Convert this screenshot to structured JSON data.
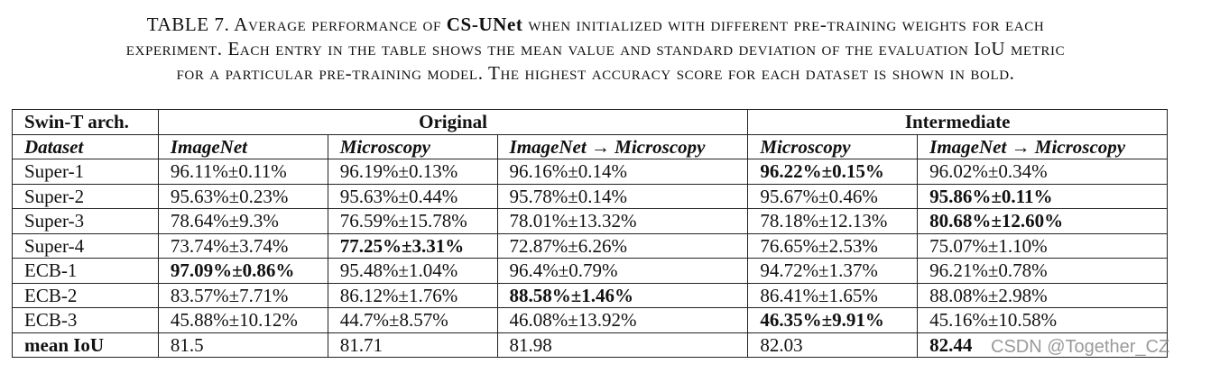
{
  "caption": {
    "line1": [
      "TABLE 7. Average performance of ",
      "CS-UNet",
      " when initialized with different pre-training weights for each"
    ],
    "line2": "experiment. Each entry in the table shows the mean value and standard deviation of the evaluation IoU metric",
    "line3": "for a particular pre-training model. The highest accuracy score for each dataset is shown in bold."
  },
  "table": {
    "group_header": [
      "Swin-T arch.",
      "Original",
      "Intermediate"
    ],
    "column_header": [
      "Dataset",
      "ImageNet",
      "Microscopy",
      "ImageNet → Microscopy",
      "Microscopy",
      "ImageNet → Microscopy"
    ],
    "rows": [
      [
        "Super-1",
        "96.11%±0.11%",
        "96.19%±0.13%",
        "96.16%±0.14%",
        {
          "text": "96.22%±0.15%",
          "bold": true
        },
        "96.02%±0.34%"
      ],
      [
        "Super-2",
        "95.63%±0.23%",
        "95.63%±0.44%",
        "95.78%±0.14%",
        "95.67%±0.46%",
        {
          "text": "95.86%±0.11%",
          "bold": true
        }
      ],
      [
        "Super-3",
        "78.64%±9.3%",
        "76.59%±15.78%",
        "78.01%±13.32%",
        "78.18%±12.13%",
        {
          "text": "80.68%±12.60%",
          "bold": true
        }
      ],
      [
        "Super-4",
        "73.74%±3.74%",
        {
          "text": "77.25%±3.31%",
          "bold": true
        },
        "72.87%±6.26%",
        "76.65%±2.53%",
        "75.07%±1.10%"
      ],
      [
        "ECB-1",
        {
          "text": "97.09%±0.86%",
          "bold": true
        },
        "95.48%±1.04%",
        "96.4%±0.79%",
        "94.72%±1.37%",
        "96.21%±0.78%"
      ],
      [
        "ECB-2",
        "83.57%±7.71%",
        "86.12%±1.76%",
        {
          "text": "88.58%±1.46%",
          "bold": true
        },
        "86.41%±1.65%",
        "88.08%±2.98%"
      ],
      [
        "ECB-3",
        "45.88%±10.12%",
        "44.7%±8.57%",
        "46.08%±13.92%",
        {
          "text": "46.35%±9.91%",
          "bold": true
        },
        "45.16%±10.58%"
      ],
      [
        {
          "text": "mean IoU",
          "bold": true
        },
        "81.5",
        "81.71",
        "81.98",
        "82.03",
        {
          "text": "82.44",
          "bold": true
        }
      ]
    ]
  },
  "watermark": "CSDN @Together_CZ"
}
